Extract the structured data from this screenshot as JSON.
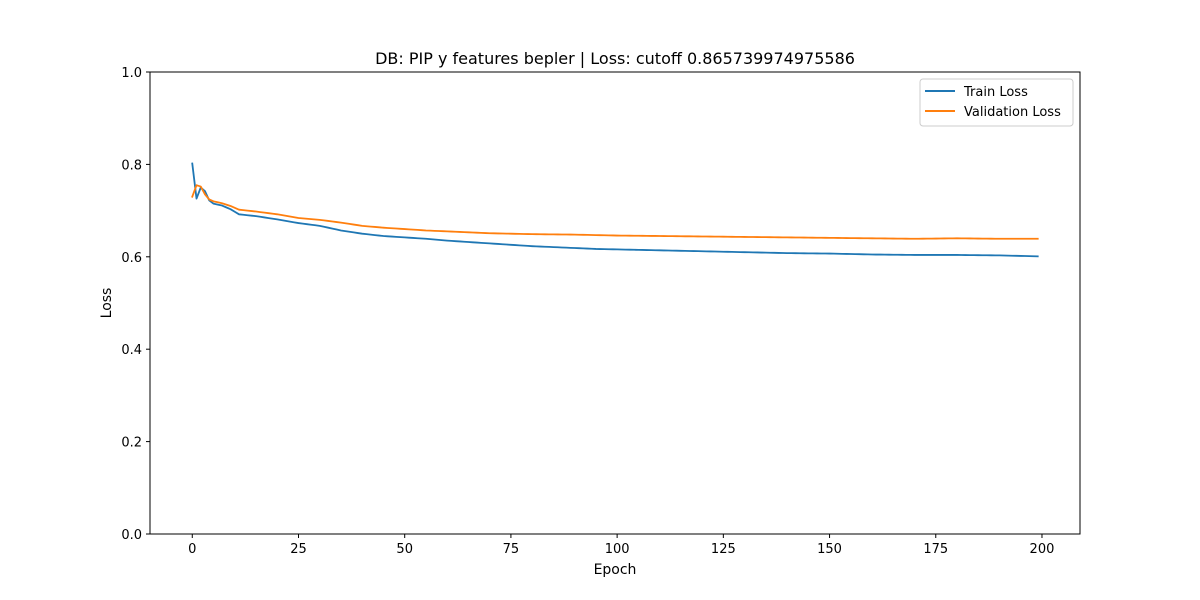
{
  "chart_data": {
    "type": "line",
    "title": "DB: PIP y features bepler | Loss: cutoff 0.865739974975586",
    "xlabel": "Epoch",
    "ylabel": "Loss",
    "xlim": [
      -9.95,
      208.95
    ],
    "ylim": [
      0.0,
      1.0
    ],
    "xticks": [
      0,
      25,
      50,
      75,
      100,
      125,
      150,
      175,
      200
    ],
    "yticks": [
      0.0,
      0.2,
      0.4,
      0.6,
      0.8,
      1.0
    ],
    "xtick_labels": [
      "0",
      "25",
      "50",
      "75",
      "100",
      "125",
      "150",
      "175",
      "200"
    ],
    "ytick_labels": [
      "0.0",
      "0.2",
      "0.4",
      "0.6",
      "0.8",
      "1.0"
    ],
    "grid": false,
    "legend_position": "top-right",
    "x": {
      "start": 0,
      "end": 199,
      "step": 1
    },
    "series": [
      {
        "name": "Train Loss",
        "color": "#1f77b4",
        "keypoints": [
          [
            0,
            0.802
          ],
          [
            1,
            0.726
          ],
          [
            2,
            0.75
          ],
          [
            3,
            0.742
          ],
          [
            4,
            0.722
          ],
          [
            5,
            0.715
          ],
          [
            7,
            0.711
          ],
          [
            9,
            0.703
          ],
          [
            11,
            0.692
          ],
          [
            15,
            0.688
          ],
          [
            20,
            0.681
          ],
          [
            25,
            0.673
          ],
          [
            30,
            0.667
          ],
          [
            35,
            0.657
          ],
          [
            40,
            0.65
          ],
          [
            45,
            0.645
          ],
          [
            50,
            0.642
          ],
          [
            55,
            0.639
          ],
          [
            60,
            0.635
          ],
          [
            65,
            0.632
          ],
          [
            70,
            0.629
          ],
          [
            75,
            0.626
          ],
          [
            80,
            0.623
          ],
          [
            85,
            0.621
          ],
          [
            90,
            0.619
          ],
          [
            95,
            0.617
          ],
          [
            100,
            0.616
          ],
          [
            110,
            0.614
          ],
          [
            120,
            0.612
          ],
          [
            130,
            0.61
          ],
          [
            140,
            0.608
          ],
          [
            150,
            0.607
          ],
          [
            160,
            0.605
          ],
          [
            170,
            0.604
          ],
          [
            180,
            0.604
          ],
          [
            190,
            0.603
          ],
          [
            199,
            0.601
          ]
        ]
      },
      {
        "name": "Validation Loss",
        "color": "#ff7f0e",
        "keypoints": [
          [
            0,
            0.73
          ],
          [
            1,
            0.755
          ],
          [
            2,
            0.752
          ],
          [
            3,
            0.735
          ],
          [
            4,
            0.724
          ],
          [
            5,
            0.72
          ],
          [
            7,
            0.716
          ],
          [
            9,
            0.71
          ],
          [
            11,
            0.702
          ],
          [
            15,
            0.698
          ],
          [
            20,
            0.692
          ],
          [
            25,
            0.684
          ],
          [
            30,
            0.68
          ],
          [
            35,
            0.674
          ],
          [
            40,
            0.667
          ],
          [
            45,
            0.663
          ],
          [
            50,
            0.66
          ],
          [
            55,
            0.657
          ],
          [
            60,
            0.655
          ],
          [
            65,
            0.653
          ],
          [
            70,
            0.651
          ],
          [
            75,
            0.65
          ],
          [
            80,
            0.649
          ],
          [
            90,
            0.648
          ],
          [
            100,
            0.646
          ],
          [
            110,
            0.645
          ],
          [
            120,
            0.644
          ],
          [
            130,
            0.643
          ],
          [
            140,
            0.642
          ],
          [
            150,
            0.641
          ],
          [
            160,
            0.64
          ],
          [
            170,
            0.639
          ],
          [
            180,
            0.64
          ],
          [
            190,
            0.639
          ],
          [
            199,
            0.639
          ]
        ]
      }
    ]
  }
}
